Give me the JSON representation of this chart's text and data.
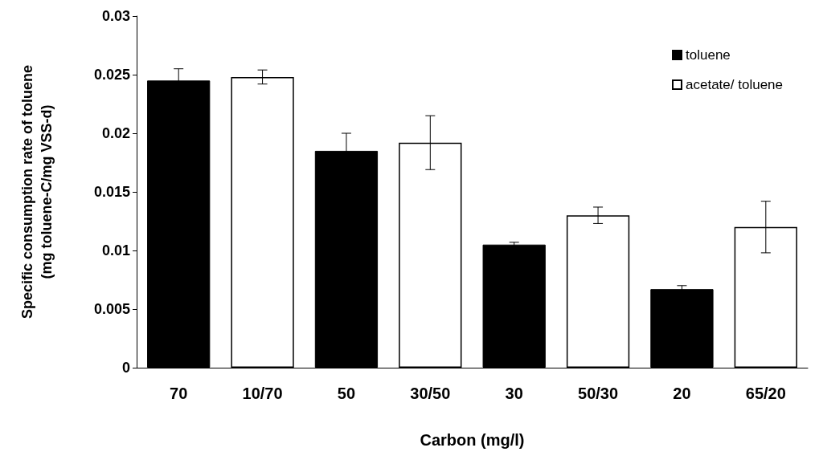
{
  "chart_data": {
    "type": "bar",
    "xlabel": "Carbon (mg/l)",
    "ylabel": "Specific consumption rate of toluene\n(mg toluene-C/mg VSS-d)",
    "categories": [
      "70",
      "10/70",
      "50",
      "30/50",
      "30",
      "50/30",
      "20",
      "65/20"
    ],
    "series": [
      {
        "name": "toluene",
        "color": "#000000",
        "values": [
          0.0245,
          null,
          0.0185,
          null,
          0.0105,
          null,
          0.0067,
          null
        ],
        "errors": [
          0.001,
          null,
          0.0015,
          null,
          0.0002,
          null,
          0.0003,
          null
        ]
      },
      {
        "name": "acetate/ toluene",
        "color": "#ffffff",
        "values": [
          null,
          0.0248,
          null,
          0.0192,
          null,
          0.013,
          null,
          0.012
        ],
        "errors": [
          null,
          0.0006,
          null,
          0.0023,
          null,
          0.0007,
          null,
          0.0022
        ]
      }
    ],
    "ylim": [
      0,
      0.03
    ],
    "yticks": [
      0,
      0.005,
      0.01,
      0.015,
      0.02,
      0.025,
      0.03
    ],
    "grid": false,
    "legend": "top right"
  }
}
